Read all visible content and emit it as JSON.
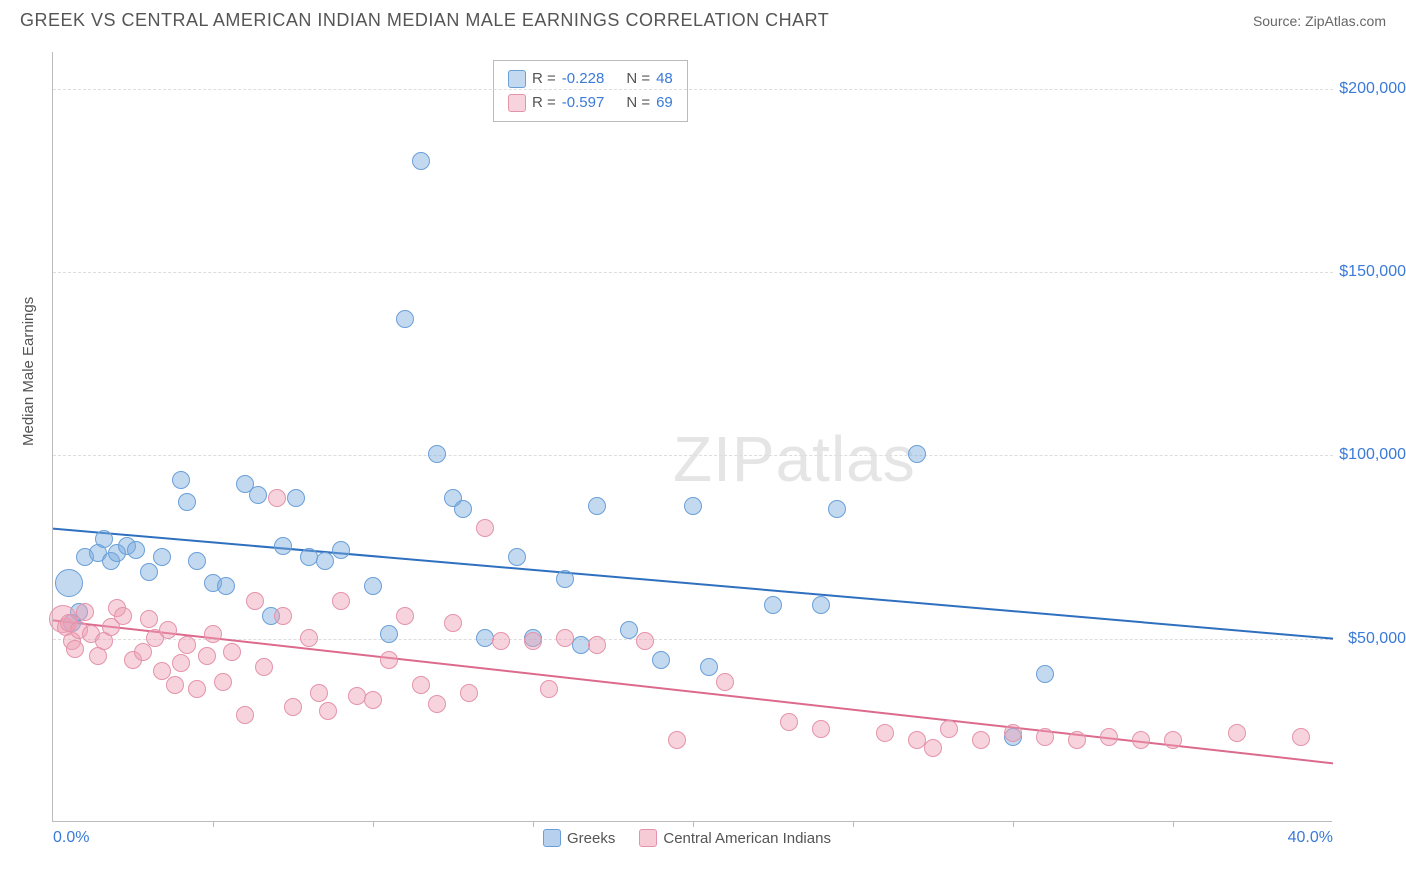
{
  "header": {
    "title": "GREEK VS CENTRAL AMERICAN INDIAN MEDIAN MALE EARNINGS CORRELATION CHART",
    "source_label": "Source: ",
    "source_name": "ZipAtlas.com"
  },
  "chart": {
    "type": "scatter",
    "ylabel": "Median Male Earnings",
    "background_color": "#ffffff",
    "grid_color": "#dddddd",
    "axis_color": "#bbbbbb",
    "tick_label_color": "#3a7ad9",
    "xlim": [
      0,
      40
    ],
    "ylim": [
      0,
      210000
    ],
    "y_ticks": [
      50000,
      100000,
      150000,
      200000
    ],
    "y_tick_labels": [
      "$50,000",
      "$100,000",
      "$150,000",
      "$200,000"
    ],
    "x_ticks": [
      0,
      40
    ],
    "x_tick_labels": [
      "0.0%",
      "40.0%"
    ],
    "x_minor_ticks": [
      5,
      10,
      15,
      20,
      25,
      30,
      35
    ],
    "marker_radius": 9,
    "marker_stroke_width": 1.5,
    "trend_line_width": 2,
    "series": [
      {
        "name": "Greeks",
        "color_fill": "rgba(122,170,222,0.45)",
        "color_stroke": "#6a9fd8",
        "trend_color": "#2f6fbf",
        "R": "-0.228",
        "N": "48",
        "trend": {
          "y_at_x0": 80000,
          "y_at_xmax": 50000
        },
        "points": [
          {
            "x": 0.5,
            "y": 65000,
            "r": 14
          },
          {
            "x": 0.6,
            "y": 54000
          },
          {
            "x": 0.8,
            "y": 57000
          },
          {
            "x": 1.0,
            "y": 72000
          },
          {
            "x": 1.4,
            "y": 73000
          },
          {
            "x": 1.6,
            "y": 77000
          },
          {
            "x": 1.8,
            "y": 71000
          },
          {
            "x": 2.0,
            "y": 73000
          },
          {
            "x": 2.3,
            "y": 75000
          },
          {
            "x": 2.6,
            "y": 74000
          },
          {
            "x": 3.0,
            "y": 68000
          },
          {
            "x": 3.4,
            "y": 72000
          },
          {
            "x": 4.0,
            "y": 93000
          },
          {
            "x": 4.2,
            "y": 87000
          },
          {
            "x": 4.5,
            "y": 71000
          },
          {
            "x": 5.0,
            "y": 65000
          },
          {
            "x": 5.4,
            "y": 64000
          },
          {
            "x": 6.0,
            "y": 92000
          },
          {
            "x": 6.4,
            "y": 89000
          },
          {
            "x": 6.8,
            "y": 56000
          },
          {
            "x": 7.2,
            "y": 75000
          },
          {
            "x": 7.6,
            "y": 88000
          },
          {
            "x": 8.0,
            "y": 72000
          },
          {
            "x": 8.5,
            "y": 71000
          },
          {
            "x": 9.0,
            "y": 74000
          },
          {
            "x": 10.0,
            "y": 64000
          },
          {
            "x": 10.5,
            "y": 51000
          },
          {
            "x": 11.0,
            "y": 137000
          },
          {
            "x": 11.5,
            "y": 180000
          },
          {
            "x": 12.0,
            "y": 100000
          },
          {
            "x": 12.5,
            "y": 88000
          },
          {
            "x": 12.8,
            "y": 85000
          },
          {
            "x": 13.5,
            "y": 50000
          },
          {
            "x": 14.5,
            "y": 72000
          },
          {
            "x": 15.0,
            "y": 50000
          },
          {
            "x": 16.0,
            "y": 66000
          },
          {
            "x": 16.5,
            "y": 48000
          },
          {
            "x": 17.0,
            "y": 86000
          },
          {
            "x": 18.0,
            "y": 52000
          },
          {
            "x": 19.0,
            "y": 44000
          },
          {
            "x": 20.0,
            "y": 86000
          },
          {
            "x": 20.5,
            "y": 42000
          },
          {
            "x": 22.5,
            "y": 59000
          },
          {
            "x": 24.0,
            "y": 59000
          },
          {
            "x": 24.5,
            "y": 85000
          },
          {
            "x": 27.0,
            "y": 100000
          },
          {
            "x": 30.0,
            "y": 23000
          },
          {
            "x": 31.0,
            "y": 40000
          }
        ]
      },
      {
        "name": "Central American Indians",
        "color_fill": "rgba(238,160,180,0.45)",
        "color_stroke": "#e493aa",
        "trend_color": "#dc6a8c",
        "R": "-0.597",
        "N": "69",
        "trend": {
          "y_at_x0": 55000,
          "y_at_xmax": 16000
        },
        "points": [
          {
            "x": 0.3,
            "y": 55000,
            "r": 14
          },
          {
            "x": 0.4,
            "y": 53000
          },
          {
            "x": 0.5,
            "y": 54000
          },
          {
            "x": 0.6,
            "y": 49000
          },
          {
            "x": 0.7,
            "y": 47000
          },
          {
            "x": 0.8,
            "y": 52000
          },
          {
            "x": 1.0,
            "y": 57000
          },
          {
            "x": 1.2,
            "y": 51000
          },
          {
            "x": 1.4,
            "y": 45000
          },
          {
            "x": 1.6,
            "y": 49000
          },
          {
            "x": 1.8,
            "y": 53000
          },
          {
            "x": 2.0,
            "y": 58000
          },
          {
            "x": 2.2,
            "y": 56000
          },
          {
            "x": 2.5,
            "y": 44000
          },
          {
            "x": 2.8,
            "y": 46000
          },
          {
            "x": 3.0,
            "y": 55000
          },
          {
            "x": 3.2,
            "y": 50000
          },
          {
            "x": 3.4,
            "y": 41000
          },
          {
            "x": 3.6,
            "y": 52000
          },
          {
            "x": 3.8,
            "y": 37000
          },
          {
            "x": 4.0,
            "y": 43000
          },
          {
            "x": 4.2,
            "y": 48000
          },
          {
            "x": 4.5,
            "y": 36000
          },
          {
            "x": 4.8,
            "y": 45000
          },
          {
            "x": 5.0,
            "y": 51000
          },
          {
            "x": 5.3,
            "y": 38000
          },
          {
            "x": 5.6,
            "y": 46000
          },
          {
            "x": 6.0,
            "y": 29000
          },
          {
            "x": 6.3,
            "y": 60000
          },
          {
            "x": 6.6,
            "y": 42000
          },
          {
            "x": 7.0,
            "y": 88000
          },
          {
            "x": 7.2,
            "y": 56000
          },
          {
            "x": 7.5,
            "y": 31000
          },
          {
            "x": 8.0,
            "y": 50000
          },
          {
            "x": 8.3,
            "y": 35000
          },
          {
            "x": 8.6,
            "y": 30000
          },
          {
            "x": 9.0,
            "y": 60000
          },
          {
            "x": 9.5,
            "y": 34000
          },
          {
            "x": 10.0,
            "y": 33000
          },
          {
            "x": 10.5,
            "y": 44000
          },
          {
            "x": 11.0,
            "y": 56000
          },
          {
            "x": 11.5,
            "y": 37000
          },
          {
            "x": 12.0,
            "y": 32000
          },
          {
            "x": 12.5,
            "y": 54000
          },
          {
            "x": 13.0,
            "y": 35000
          },
          {
            "x": 13.5,
            "y": 80000
          },
          {
            "x": 14.0,
            "y": 49000
          },
          {
            "x": 15.0,
            "y": 49000
          },
          {
            "x": 15.5,
            "y": 36000
          },
          {
            "x": 16.0,
            "y": 50000
          },
          {
            "x": 17.0,
            "y": 48000
          },
          {
            "x": 18.5,
            "y": 49000
          },
          {
            "x": 19.5,
            "y": 22000
          },
          {
            "x": 21.0,
            "y": 38000
          },
          {
            "x": 23.0,
            "y": 27000
          },
          {
            "x": 24.0,
            "y": 25000
          },
          {
            "x": 26.0,
            "y": 24000
          },
          {
            "x": 27.0,
            "y": 22000
          },
          {
            "x": 27.5,
            "y": 20000
          },
          {
            "x": 28.0,
            "y": 25000
          },
          {
            "x": 29.0,
            "y": 22000
          },
          {
            "x": 30.0,
            "y": 24000
          },
          {
            "x": 31.0,
            "y": 23000
          },
          {
            "x": 32.0,
            "y": 22000
          },
          {
            "x": 33.0,
            "y": 23000
          },
          {
            "x": 34.0,
            "y": 22000
          },
          {
            "x": 35.0,
            "y": 22000
          },
          {
            "x": 37.0,
            "y": 24000
          },
          {
            "x": 39.0,
            "y": 23000
          }
        ]
      }
    ],
    "legend_bottom": [
      {
        "label": "Greeks",
        "fill": "rgba(122,170,222,0.55)",
        "stroke": "#6a9fd8"
      },
      {
        "label": "Central American Indians",
        "fill": "rgba(238,160,180,0.55)",
        "stroke": "#e493aa"
      }
    ],
    "watermark": {
      "part1": "ZIP",
      "part2": "atlas"
    }
  }
}
